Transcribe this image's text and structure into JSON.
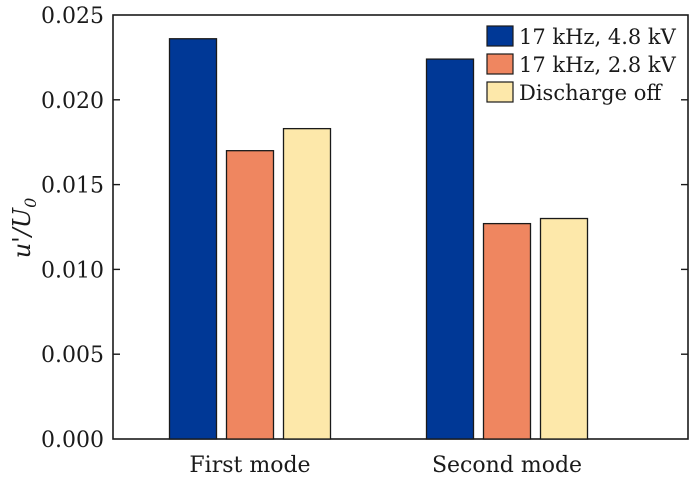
{
  "chart_data": {
    "type": "bar",
    "categories": [
      "First mode",
      "Second mode"
    ],
    "series": [
      {
        "name": "17 kHz, 4.8 kV",
        "values": [
          0.0236,
          0.0224
        ],
        "color": "#003896"
      },
      {
        "name": "17 kHz, 2.8 kV",
        "values": [
          0.017,
          0.0127
        ],
        "color": "#ef8660"
      },
      {
        "name": "Discharge off",
        "values": [
          0.0183,
          0.013
        ],
        "color": "#fde8aa"
      }
    ],
    "title": "",
    "xlabel": "",
    "ylabel": "u'/U",
    "ylabel_subscript": "0",
    "ylim": [
      0,
      0.025
    ],
    "yticks": [
      "0.000",
      "0.005",
      "0.010",
      "0.015",
      "0.020",
      "0.025"
    ],
    "legend_position": "top-right",
    "grid": false
  }
}
